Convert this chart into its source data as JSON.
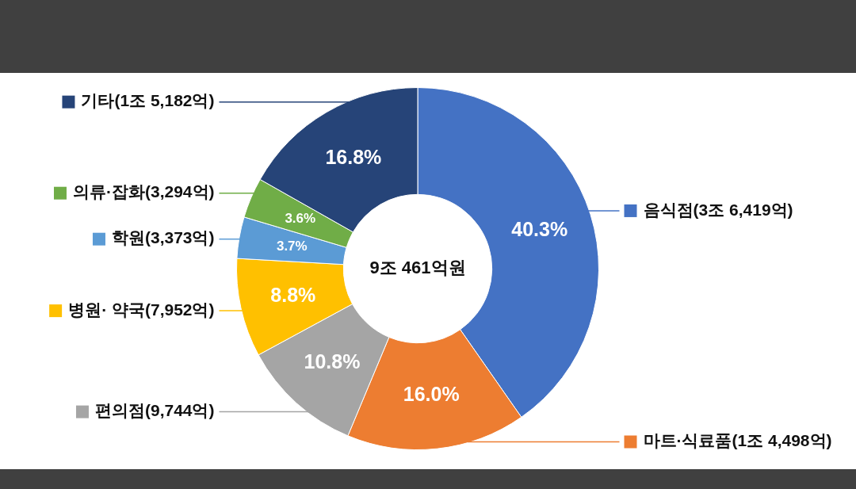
{
  "chart_data": {
    "type": "donut",
    "categories": [
      "음식점(3조 6,419억)",
      "마트·식료품(1조 4,498억)",
      "편의점(9,744억)",
      "병원· 약국(7,952억)",
      "학원(3,373억)",
      "의류·잡화(3,294억)",
      "기타(1조 5,182억)"
    ],
    "values": [
      40.3,
      16.0,
      10.8,
      8.8,
      3.7,
      3.6,
      16.8
    ],
    "value_labels": [
      "40.3%",
      "16.0%",
      "10.8%",
      "8.8%",
      "3.7%",
      "3.6%",
      "16.8%"
    ],
    "colors": [
      "#4472c4",
      "#ed7d31",
      "#a5a5a5",
      "#ffc000",
      "#5b9bd5",
      "#70ad47",
      "#264478"
    ],
    "annotations": [
      "9조 461억원"
    ],
    "legend": "bottom right"
  }
}
